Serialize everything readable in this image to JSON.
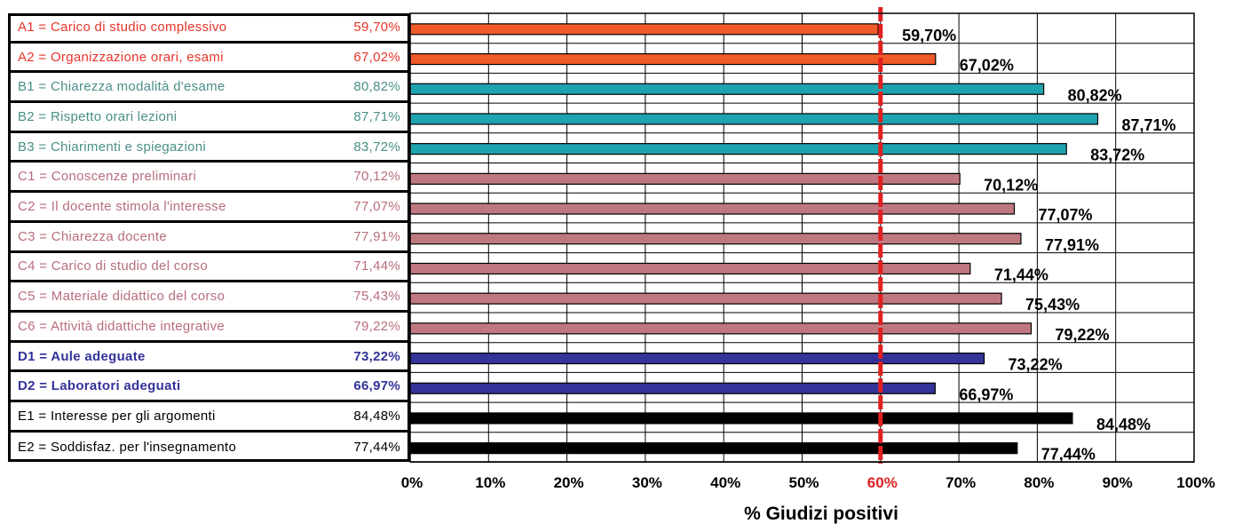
{
  "chart_data": {
    "type": "bar",
    "orientation": "horizontal",
    "categories": [
      {
        "label": "A1 = Carico di studio complessivo",
        "value_label": "59,70%",
        "value": 59.7,
        "color": "#f05a28",
        "bold": false
      },
      {
        "label": "A2 = Organizzazione orari, esami",
        "value_label": "67,02%",
        "value": 67.02,
        "color": "#f05a28",
        "bold": false
      },
      {
        "label": "B1 = Chiarezza modalità d'esame",
        "value_label": "80,82%",
        "value": 80.82,
        "color": "#1fa3ae",
        "bold": false
      },
      {
        "label": "B2 = Rispetto orari lezioni",
        "value_label": "87,71%",
        "value": 87.71,
        "color": "#1fa3ae",
        "bold": false
      },
      {
        "label": "B3 = Chiarimenti e spiegazioni",
        "value_label": "83,72%",
        "value": 83.72,
        "color": "#1fa3ae",
        "bold": false
      },
      {
        "label": "C1 = Conoscenze preliminari",
        "value_label": "70,12%",
        "value": 70.12,
        "color": "#c07880",
        "bold": false
      },
      {
        "label": "C2 = Il docente stimola l'interesse",
        "value_label": "77,07%",
        "value": 77.07,
        "color": "#c07880",
        "bold": false
      },
      {
        "label": "C3 = Chiarezza docente",
        "value_label": "77,91%",
        "value": 77.91,
        "color": "#c07880",
        "bold": false
      },
      {
        "label": "C4 = Carico di studio del corso",
        "value_label": "71,44%",
        "value": 71.44,
        "color": "#c07880",
        "bold": false
      },
      {
        "label": "C5 = Materiale didattico del corso",
        "value_label": "75,43%",
        "value": 75.43,
        "color": "#c07880",
        "bold": false
      },
      {
        "label": "C6 = Attività didattiche integrative",
        "value_label": "79,22%",
        "value": 79.22,
        "color": "#c07880",
        "bold": false
      },
      {
        "label": "D1 = Aule adeguate",
        "value_label": "73,22%",
        "value": 73.22,
        "color": "#333399",
        "bold": true
      },
      {
        "label": "D2 = Laboratori adeguati",
        "value_label": "66,97%",
        "value": 66.97,
        "color": "#333399",
        "bold": true
      },
      {
        "label": "E1 = Interesse per gli argomenti",
        "value_label": "84,48%",
        "value": 84.48,
        "color": "#000000",
        "bold": false
      },
      {
        "label": "E2 = Soddisfaz. per l'insegnamento",
        "value_label": "77,44%",
        "value": 77.44,
        "color": "#000000",
        "bold": false
      }
    ],
    "xlim": [
      0,
      100
    ],
    "x_ticks": [
      "0%",
      "10%",
      "20%",
      "30%",
      "40%",
      "50%",
      "60%",
      "70%",
      "80%",
      "90%",
      "100%"
    ],
    "highlight_tick": "60%",
    "threshold_value": 60,
    "threshold_color": "#e02020",
    "xlabel": "% Giudizi positivi",
    "grid": true
  }
}
